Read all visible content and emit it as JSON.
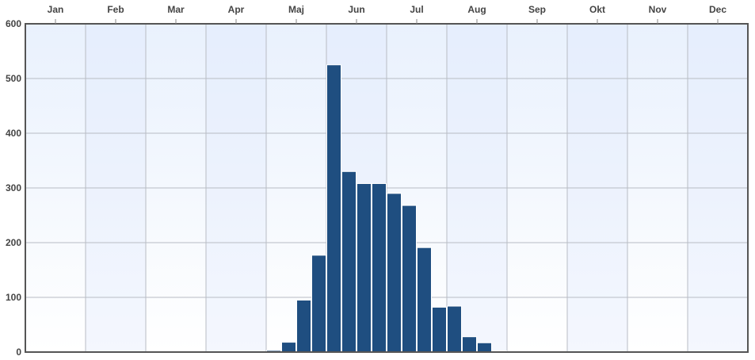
{
  "chart_data": {
    "type": "bar",
    "title": "",
    "xlabel": "",
    "ylabel": "",
    "months": [
      "Jan",
      "Feb",
      "Mar",
      "Apr",
      "Maj",
      "Jun",
      "Jul",
      "Aug",
      "Sep",
      "Okt",
      "Nov",
      "Dec"
    ],
    "bins_per_month": 4,
    "values": [
      0,
      0,
      0,
      0,
      0,
      0,
      0,
      0,
      0,
      0,
      0,
      0,
      0,
      0,
      0,
      0,
      3,
      18,
      95,
      177,
      525,
      330,
      308,
      308,
      290,
      268,
      191,
      82,
      84,
      28,
      17,
      2,
      1,
      0,
      0,
      0,
      0,
      0,
      0,
      0,
      0,
      0,
      0,
      0,
      0,
      0,
      0,
      0
    ],
    "ylim": [
      0,
      600
    ],
    "yticks": [
      0,
      100,
      200,
      300,
      400,
      500,
      600
    ],
    "grid": true,
    "legend": "none",
    "colors": {
      "bar_fill": "#1f4e80",
      "bar_stroke": "#ffffff",
      "bg_top": "#e9f1fd",
      "bg_bottom": "#ffffff",
      "grid": "#b8bcc4",
      "axis": "#555555"
    }
  }
}
